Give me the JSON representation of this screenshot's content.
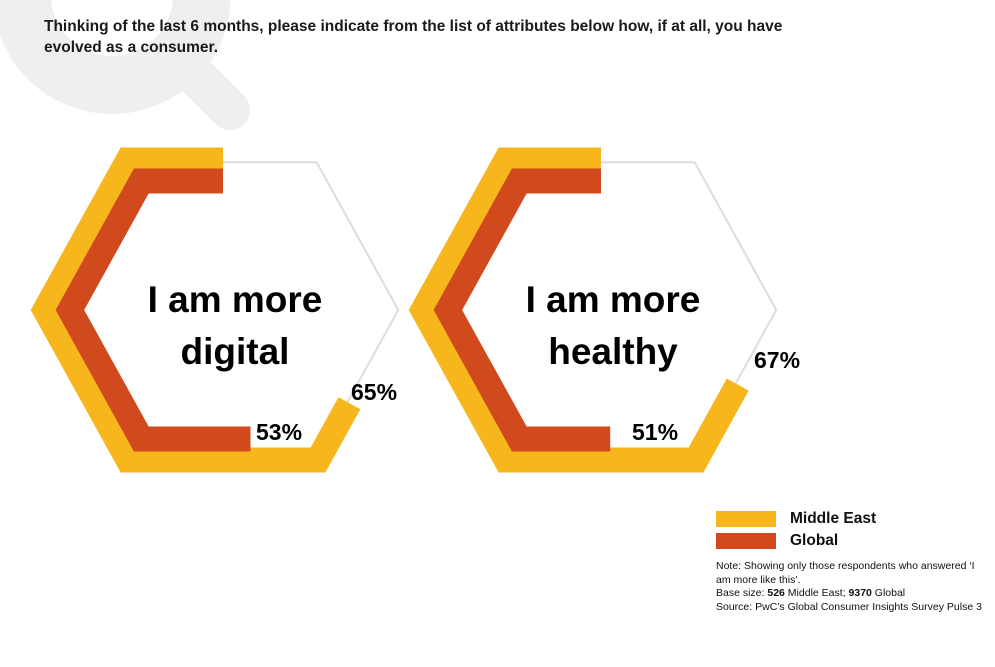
{
  "question": "Thinking of the last 6 months, please indicate from the list of attributes below how, if at all, you have evolved as a consumer.",
  "colors": {
    "middle_east": "#F7B61B",
    "global": "#D04A1E",
    "outline": "#DDDDDD",
    "watermark": "#EFEFEF"
  },
  "chart_data": [
    {
      "type": "hexagon-progress",
      "title_lines": [
        "I am more",
        "digital"
      ],
      "series": [
        {
          "name": "Middle East",
          "value": 65,
          "label": "65%"
        },
        {
          "name": "Global",
          "value": 53,
          "label": "53%"
        }
      ],
      "max": 100
    },
    {
      "type": "hexagon-progress",
      "title_lines": [
        "I am more",
        "healthy"
      ],
      "series": [
        {
          "name": "Middle East",
          "value": 67,
          "label": "67%"
        },
        {
          "name": "Global",
          "value": 51,
          "label": "51%"
        }
      ],
      "max": 100
    }
  ],
  "legend": {
    "items": [
      "Middle East",
      "Global"
    ]
  },
  "note": {
    "line1": "Note: Showing only those respondents who answered ‘I am more like this’.",
    "base_prefix": "Base size: ",
    "base_me_num": "526",
    "base_me_text": " Middle East; ",
    "base_global_num": "9370",
    "base_global_text": " Global",
    "source": "Source: PwC’s Global Consumer Insights Survey Pulse 3"
  }
}
